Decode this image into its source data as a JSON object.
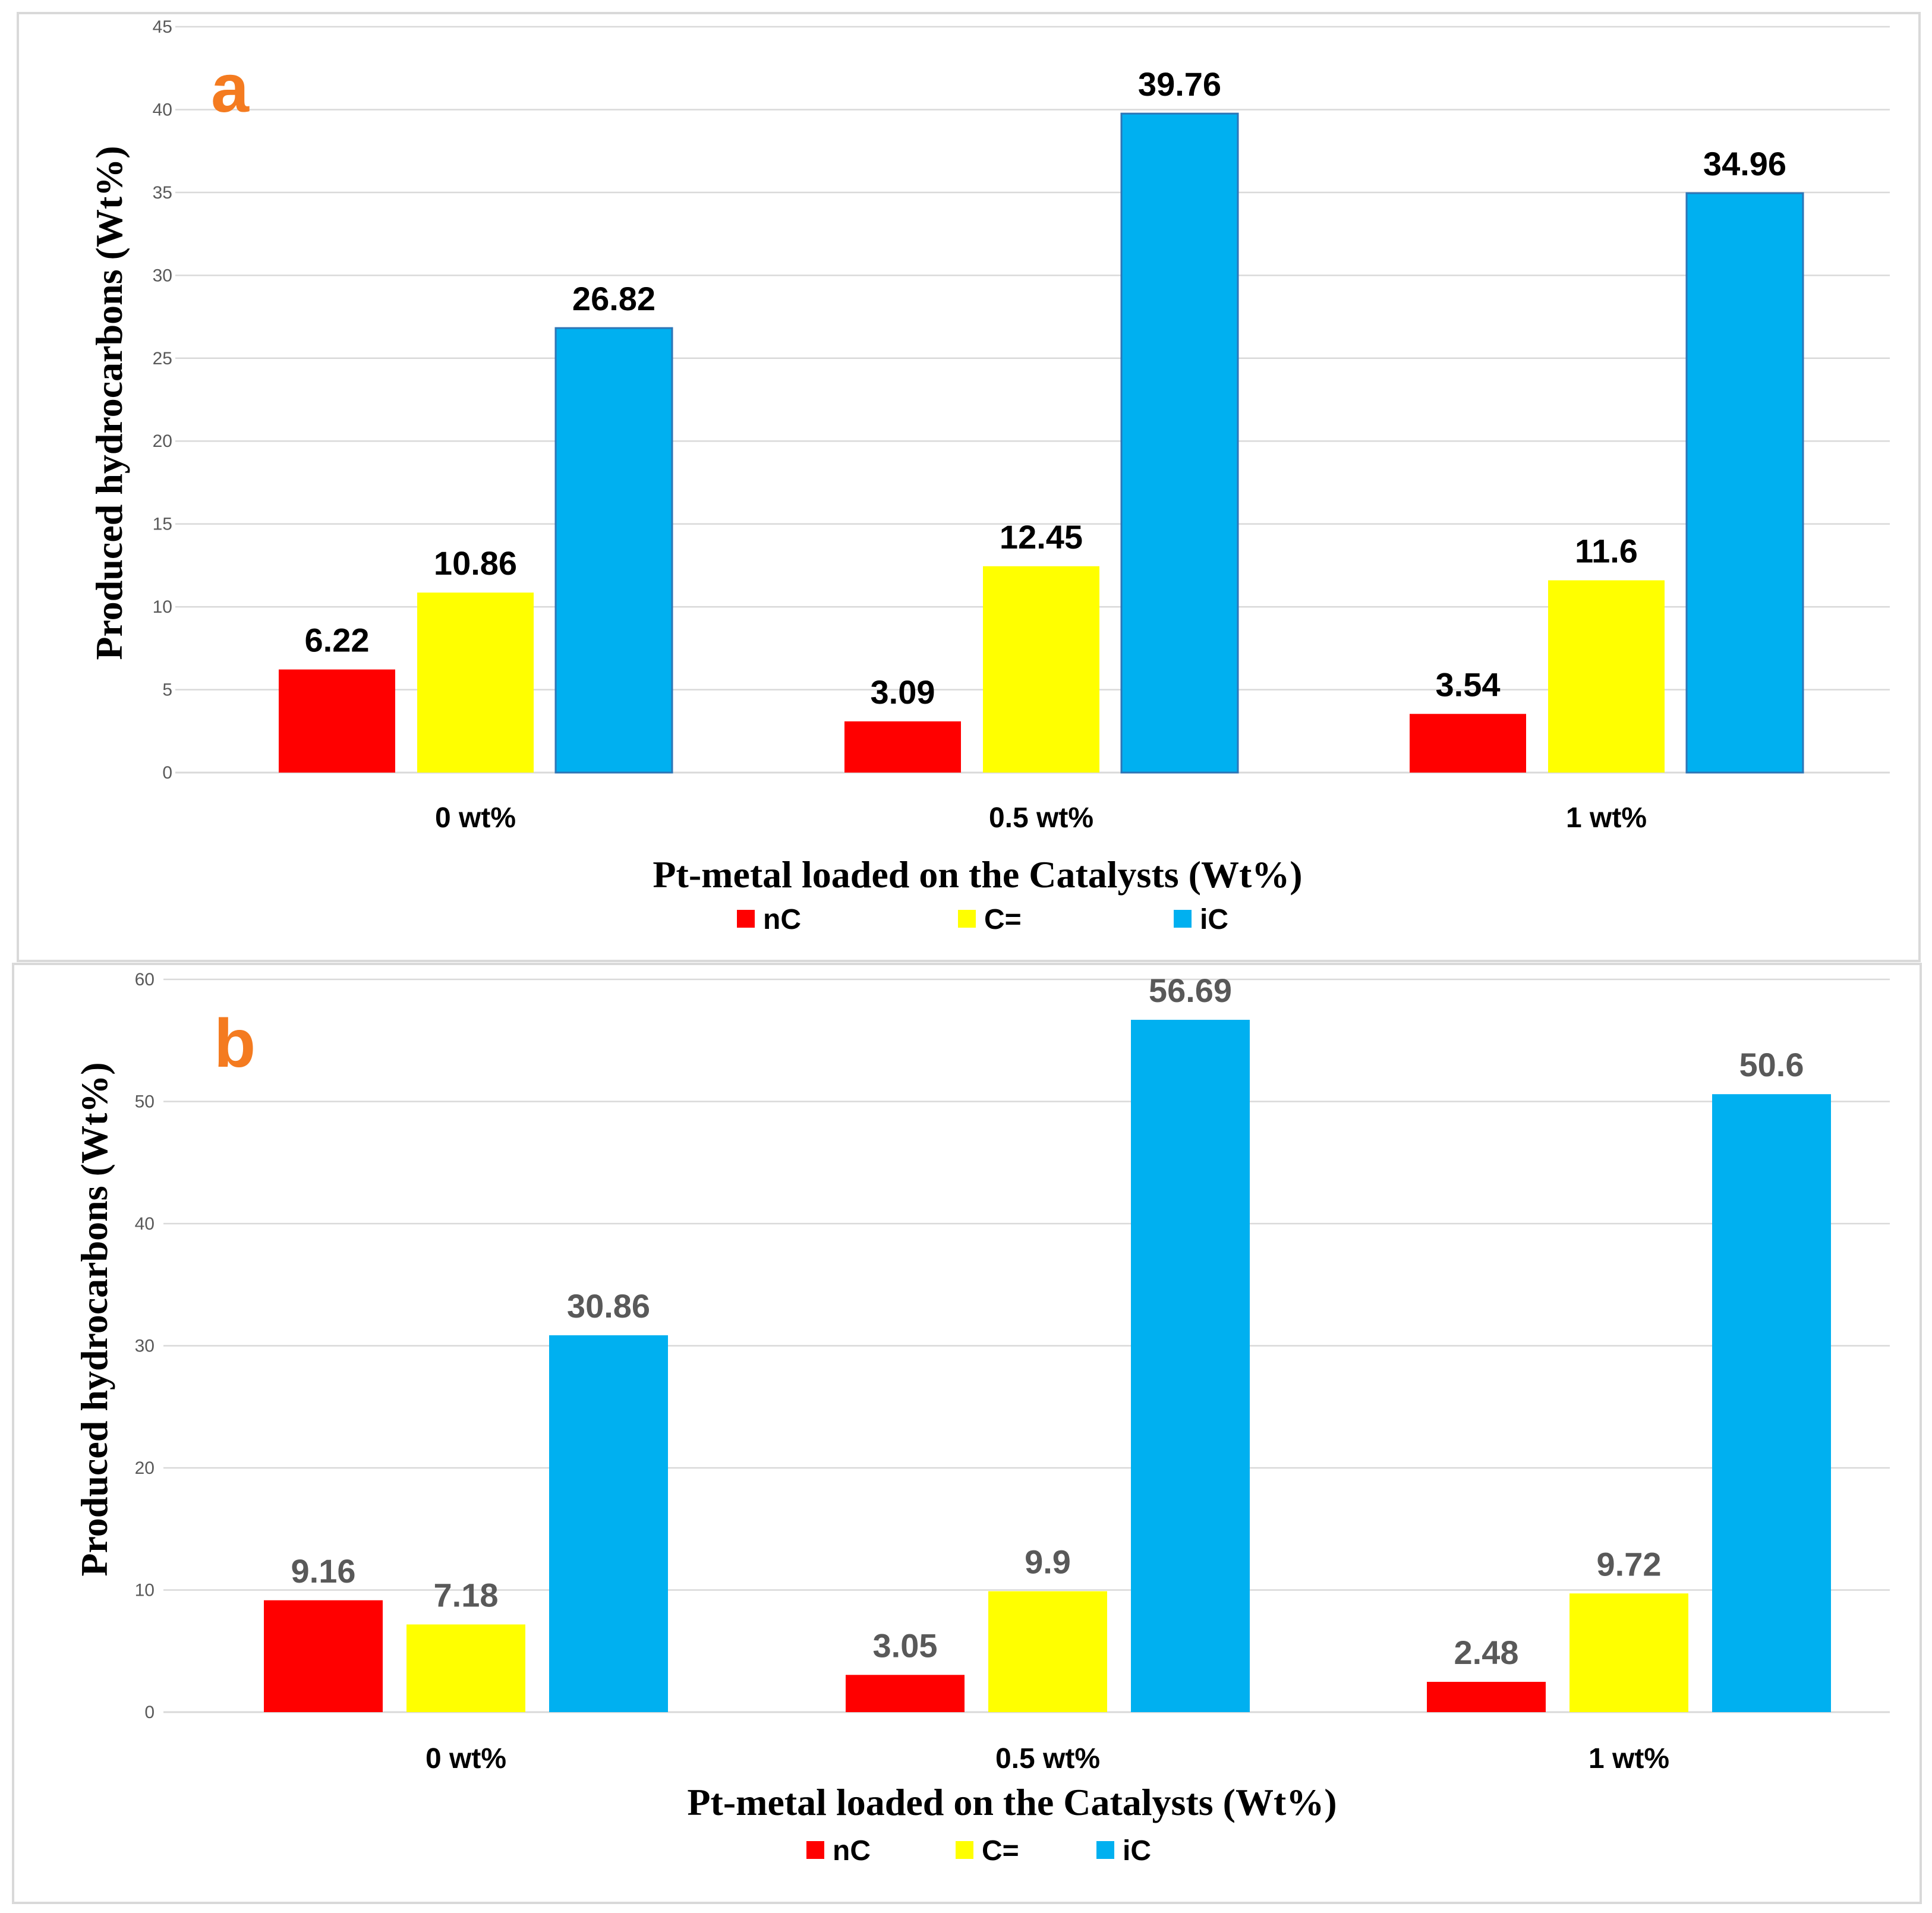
{
  "colors": {
    "nC": "#ff0000",
    "C=": "#ffff00",
    "iC": "#00b0f0",
    "panel_letter": "#f47b20",
    "label_a": "#000000",
    "label_b": "#595959"
  },
  "chart_data": [
    {
      "type": "bar",
      "panel": "a",
      "categories": [
        "0 wt%",
        "0.5 wt%",
        "1 wt%"
      ],
      "series": [
        {
          "name": "nC",
          "values": [
            6.22,
            3.09,
            3.54
          ],
          "labels": [
            "6.22",
            "3.09",
            "3.54"
          ]
        },
        {
          "name": "C=",
          "values": [
            10.86,
            12.45,
            11.6
          ],
          "labels": [
            "10.86",
            "12.45",
            "11.6"
          ]
        },
        {
          "name": "iC",
          "values": [
            26.82,
            39.76,
            34.96
          ],
          "labels": [
            "26.82",
            "39.76",
            "34.96"
          ]
        }
      ],
      "xlabel": "Pt-metal loaded on the Catalysts (Wt%)",
      "ylabel": "Produced hydrocarbons (Wt%)",
      "ylim": [
        0,
        45
      ],
      "yticks": [
        0,
        5,
        10,
        15,
        20,
        25,
        30,
        35,
        40,
        45
      ],
      "grid": true,
      "legend": "bottom"
    },
    {
      "type": "bar",
      "panel": "b",
      "categories": [
        "0 wt%",
        "0.5 wt%",
        "1 wt%"
      ],
      "series": [
        {
          "name": "nC",
          "values": [
            9.16,
            3.05,
            2.48
          ],
          "labels": [
            "9.16",
            "3.05",
            "2.48"
          ]
        },
        {
          "name": "C=",
          "values": [
            7.18,
            9.9,
            9.72
          ],
          "labels": [
            "7.18",
            "9.9",
            "9.72"
          ]
        },
        {
          "name": "iC",
          "values": [
            30.86,
            56.69,
            50.6
          ],
          "labels": [
            "30.86",
            "56.69",
            "50.6"
          ]
        }
      ],
      "xlabel": "Pt-metal loaded on the Catalysts (Wt%)",
      "ylabel": "Produced hydrocarbons (Wt%)",
      "ylim": [
        0,
        60
      ],
      "yticks": [
        0,
        10,
        20,
        30,
        40,
        50,
        60
      ],
      "grid": true,
      "legend": "bottom"
    }
  ]
}
